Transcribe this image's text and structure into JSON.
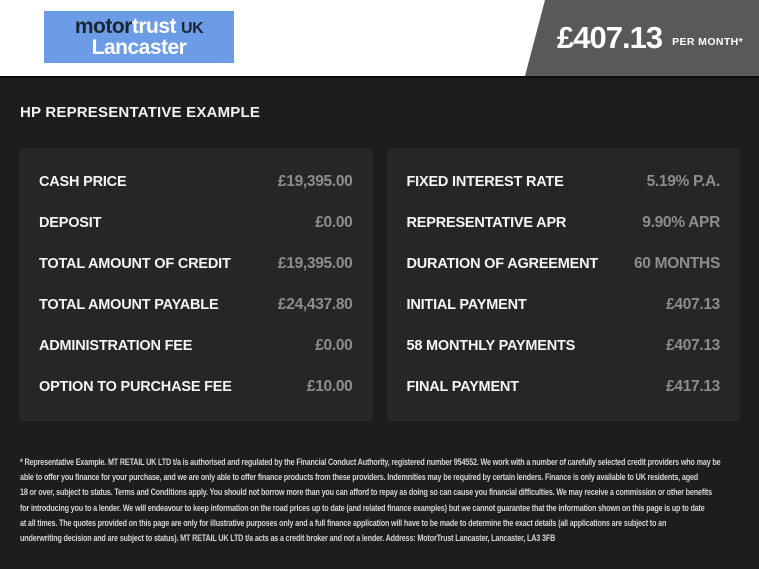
{
  "logo": {
    "brand_part1": "motor",
    "brand_part2": "trust",
    "brand_part3": "UK",
    "location": "Lancaster"
  },
  "header": {
    "price": "£407.13",
    "per_month_label": "PER MONTH*"
  },
  "section_title": "HP REPRESENTATIVE EXAMPLE",
  "tables": {
    "left": {
      "rows": [
        {
          "label": "CASH PRICE",
          "value": "£19,395.00"
        },
        {
          "label": "DEPOSIT",
          "value": "£0.00"
        },
        {
          "label": "TOTAL AMOUNT OF CREDIT",
          "value": "£19,395.00"
        },
        {
          "label": "TOTAL AMOUNT PAYABLE",
          "value": "£24,437.80"
        },
        {
          "label": "ADMINISTRATION FEE",
          "value": "£0.00"
        },
        {
          "label": "OPTION TO PURCHASE FEE",
          "value": "£10.00"
        }
      ]
    },
    "right": {
      "rows": [
        {
          "label": "FIXED INTEREST RATE",
          "value": "5.19% P.A."
        },
        {
          "label": "REPRESENTATIVE APR",
          "value": "9.90% APR"
        },
        {
          "label": "DURATION OF AGREEMENT",
          "value": "60 MONTHS"
        },
        {
          "label": "INITIAL PAYMENT",
          "value": "£407.13"
        },
        {
          "label": "58 MONTHLY PAYMENTS",
          "value": "£407.13"
        },
        {
          "label": "FINAL PAYMENT",
          "value": "£417.13"
        }
      ]
    }
  },
  "footer": {
    "lines": [
      "* Representative Example. MT RETAIL UK LTD t/a is authorised and regulated by the Financial Conduct Authority, registered number 954552. We work with a number of carefully selected credit providers who may be",
      "able to offer you finance for your purchase, and we are only able to offer finance products from these providers. Indemnities may be required by certain lenders. Finance is only available to UK residents, aged",
      "18 or over, subject to status. Terms and Conditions apply. You should not borrow more than you can afford to repay as doing so can cause you financial difficulties. We may receive a commission or other benefits",
      "for introducing you to a lender. We will endeavour to keep information on the road prices up to date (and related finance examples) but we cannot guarantee that the information shown on this page is up to date",
      "at all times. The quotes provided on this page are only for illustrative purposes only and a full finance application will have to be made to determine the exact details (all applications are subject to an",
      "underwriting decision and are subject to status). MT RETAIL UK LTD t/a acts as a credit broker and not a lender. Address: MotorTrust Lancaster, Lancaster, LA3 3FB"
    ]
  },
  "colors": {
    "brand_blue": "#6d9ce6",
    "flag_gray": "#595959",
    "panel_dark": "#1d1d1d",
    "table_bg": "#262626",
    "label_white": "#f5f5f5",
    "value_gray": "#8d8d8d"
  }
}
